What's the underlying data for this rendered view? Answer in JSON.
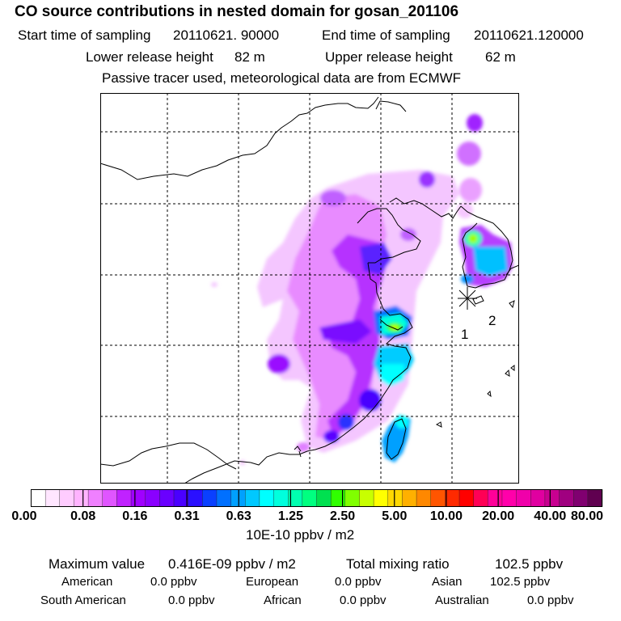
{
  "header": {
    "title": "CO  source contributions in nested domain for gosan_201106",
    "start_label": "Start time of sampling",
    "start_value": "20110621. 90000",
    "end_label": "End time of sampling",
    "end_value": "20110621.120000",
    "lower_label": "Lower release height",
    "lower_value": "82 m",
    "upper_label": "Upper release height",
    "upper_value": "62 m",
    "note": "Passive tracer used, meteorological data are from ECMWF"
  },
  "map": {
    "point_labels": [
      "1",
      "2"
    ],
    "receptor_marker": "asterisk-marker"
  },
  "colorbar": {
    "ticks": [
      "0.00",
      "0.08",
      "0.16",
      "0.31",
      "0.63",
      "1.25",
      "2.50",
      "5.00",
      "10.00",
      "20.00",
      "40.00",
      "80.00"
    ],
    "units": "10E-10 ppbv / m2",
    "colors": [
      "#ffffff",
      "#ffe6ff",
      "#ffccff",
      "#ffb3ff",
      "#f080ff",
      "#e055ff",
      "#c022ff",
      "#a000ff",
      "#8a00ff",
      "#6a00ff",
      "#4a00ff",
      "#2a10ff",
      "#0a40ff",
      "#0070ff",
      "#00a0ff",
      "#00c8ff",
      "#00ffff",
      "#00ffdd",
      "#00ffb0",
      "#00ff80",
      "#00e050",
      "#30ff00",
      "#80ff00",
      "#c8ff00",
      "#ffff00",
      "#ffd800",
      "#ffb000",
      "#ff8800",
      "#ff5500",
      "#ff2a00",
      "#ff0000",
      "#ff0055",
      "#ff0099",
      "#ff00aa",
      "#f000aa",
      "#e000a0",
      "#c80090",
      "#a00080",
      "#800070",
      "#600050"
    ]
  },
  "summary": {
    "max_label": "Maximum value",
    "max_value": "0.416E-09 ppbv / m2",
    "total_label": "Total mixing ratio",
    "total_value": "102.5 ppbv",
    "regions": [
      {
        "name": "American",
        "value": "0.0 ppbv"
      },
      {
        "name": "European",
        "value": "0.0 ppbv"
      },
      {
        "name": "Asian",
        "value": "102.5 ppbv"
      },
      {
        "name": "South American",
        "value": "0.0 ppbv"
      },
      {
        "name": "African",
        "value": "0.0 ppbv"
      },
      {
        "name": "Australian",
        "value": "0.0 ppbv"
      }
    ]
  }
}
